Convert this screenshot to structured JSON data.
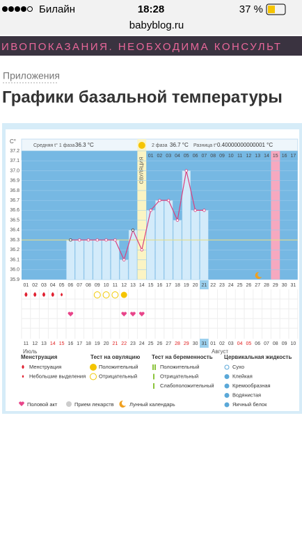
{
  "status_bar": {
    "carrier": "Билайн",
    "time": "18:28",
    "battery": "37 %"
  },
  "address": "babyblog.ru",
  "banner": "ИВОПОКАЗАНИЯ. НЕОБХОДИМА КОНСУЛЬТ",
  "breadcrumb": "Приложения",
  "title": "Графики базальной температуры",
  "chart_data": {
    "type": "line",
    "y_unit": "C°",
    "summary": {
      "phase1_label": "Средняя t° 1 фаза",
      "phase1_value": "36.3 °C",
      "phase2_label": "2 фаза",
      "phase2_value": "36.7 °C",
      "diff_label": "Разница t°",
      "diff_value": "0.40000000000001 °C"
    },
    "ovulation_label": "ОВУЛЯЦИЯ",
    "categories": [
      "01",
      "02",
      "03",
      "04",
      "05",
      "06",
      "07",
      "08",
      "09",
      "10",
      "11",
      "12",
      "13",
      "14",
      "15",
      "16",
      "17",
      "18",
      "19",
      "20",
      "21",
      "22",
      "23",
      "24",
      "25",
      "26",
      "27",
      "28",
      "29",
      "30",
      "31"
    ],
    "phase2_days": [
      "01",
      "02",
      "03",
      "04",
      "05",
      "06",
      "07",
      "08",
      "09",
      "10",
      "11",
      "12",
      "13",
      "14",
      "15",
      "16",
      "17"
    ],
    "calendar": [
      "11",
      "12",
      "13",
      "14",
      "15",
      "16",
      "17",
      "18",
      "19",
      "20",
      "21",
      "22",
      "23",
      "24",
      "25",
      "26",
      "27",
      "28",
      "29",
      "30",
      "31",
      "01",
      "02",
      "03",
      "04",
      "05",
      "06",
      "07",
      "08",
      "09",
      "10"
    ],
    "calendar_red": [
      3,
      4,
      10,
      11,
      17,
      18,
      24,
      25
    ],
    "month_labels": [
      "Июль",
      "Август"
    ],
    "series": [
      {
        "color": "#d9417f",
        "values": [
          null,
          null,
          null,
          null,
          null,
          36.3,
          36.3,
          36.3,
          36.3,
          36.3,
          36.3,
          36.1,
          36.4,
          36.2,
          36.6,
          36.7,
          36.7,
          36.5,
          37.0,
          36.6,
          36.6,
          null,
          null,
          null,
          null,
          null,
          null,
          null,
          null,
          null,
          null
        ]
      }
    ],
    "cover_line": 36.3,
    "ylim": [
      35.9,
      37.2
    ],
    "yticks": [
      35.9,
      {
        "value": 36,
        "label": "36.0"
      },
      36.1,
      36.2,
      36.3,
      36.4,
      36.5,
      36.6,
      36.7,
      36.8,
      36.9,
      {
        "value": 37,
        "label": "37.0"
      },
      37.1,
      37.2
    ],
    "ovulation_index": 13,
    "today_index": 20,
    "pink_index": 28,
    "menstruation_days": [
      0,
      1,
      2,
      3,
      4
    ],
    "ov_test_negative": [
      8,
      9,
      10
    ],
    "ov_test_positive": [
      11
    ],
    "intercourse_days": [
      5,
      11,
      12,
      13
    ],
    "moon_day": 26
  },
  "legend": {
    "groups": [
      {
        "title": "Менструация",
        "items": [
          "Менструация",
          "Небольшие выделения"
        ]
      },
      {
        "title": "Тест на овуляцию",
        "items": [
          "Положительный",
          "Отрицательный"
        ]
      },
      {
        "title": "Тест на беременность",
        "items": [
          "Положительный",
          "Отрицательный",
          "Слабоположительный"
        ]
      },
      {
        "title": "Цервикальная жидкость",
        "items": [
          "Сухо",
          "Клейкая",
          "Кремообразная",
          "Водянистая",
          "Яичный белок"
        ]
      }
    ],
    "bottom": [
      "Половой акт",
      "Прием лекарств",
      "Лунный календарь"
    ]
  }
}
